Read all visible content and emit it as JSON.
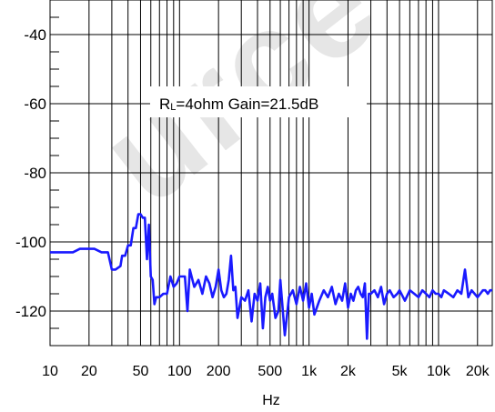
{
  "chart_data": {
    "type": "line",
    "x_scale": "log",
    "xlabel": "Hz",
    "ylabel": "",
    "xlim": [
      10,
      26000
    ],
    "ylim": [
      -130,
      -30
    ],
    "x_ticks": [
      {
        "value": 10,
        "label": "10"
      },
      {
        "value": 20,
        "label": "20"
      },
      {
        "value": 50,
        "label": "50"
      },
      {
        "value": 100,
        "label": "100"
      },
      {
        "value": 200,
        "label": "200"
      },
      {
        "value": 500,
        "label": "500"
      },
      {
        "value": 1000,
        "label": "1k"
      },
      {
        "value": 2000,
        "label": "2k"
      },
      {
        "value": 5000,
        "label": "5k"
      },
      {
        "value": 10000,
        "label": "10k"
      },
      {
        "value": 20000,
        "label": "20k"
      }
    ],
    "y_ticks": [
      -40,
      -60,
      -80,
      -100,
      -120
    ],
    "grid": true,
    "annotation": {
      "prefix": "R",
      "subscript": "L",
      "rest": "=4ohm Gain=21.5dB"
    },
    "colors": {
      "series": "#1a1aff",
      "grid": "#000000"
    },
    "series": [
      {
        "x": [
          10,
          11,
          13,
          15,
          17,
          20,
          22,
          25,
          28,
          30,
          32,
          35,
          36,
          38,
          40,
          42,
          44,
          46,
          48,
          50,
          52,
          54,
          56,
          58,
          60,
          62,
          64,
          66,
          70,
          75,
          80,
          85,
          90,
          95,
          100,
          110,
          115,
          120,
          130,
          140,
          150,
          160,
          170,
          180,
          190,
          200,
          210,
          220,
          230,
          240,
          250,
          260,
          270,
          280,
          300,
          320,
          340,
          360,
          380,
          400,
          420,
          440,
          460,
          480,
          500,
          520,
          550,
          580,
          600,
          650,
          700,
          750,
          800,
          850,
          900,
          950,
          1000,
          1050,
          1100,
          1200,
          1300,
          1400,
          1500,
          1600,
          1700,
          1800,
          1900,
          2000,
          2100,
          2200,
          2300,
          2400,
          2500,
          2600,
          2700,
          2800,
          2900,
          3000,
          3200,
          3400,
          3600,
          3800,
          4000,
          4200,
          4500,
          4800,
          5000,
          5500,
          6000,
          6500,
          7000,
          7500,
          8000,
          8500,
          9000,
          9500,
          10000,
          10500,
          11000,
          12000,
          13000,
          14000,
          15000,
          16000,
          17000,
          18000,
          19000,
          20000,
          21000,
          22000,
          23000,
          24000,
          25000,
          26000
        ],
        "y": [
          -103,
          -103,
          -103,
          -103,
          -102,
          -102,
          -102,
          -103,
          -103,
          -108,
          -108,
          -107,
          -104,
          -104,
          -101,
          -101,
          -96,
          -96,
          -92,
          -92,
          -93,
          -93,
          -105,
          -95,
          -110,
          -111,
          -118,
          -116,
          -116,
          -115,
          -115,
          -110,
          -113,
          -112,
          -110,
          -110,
          -120,
          -108,
          -113,
          -111,
          -115,
          -110,
          -112,
          -116,
          -113,
          -108,
          -114,
          -116,
          -115,
          -111,
          -104,
          -114,
          -113,
          -122,
          -116,
          -117,
          -114,
          -123,
          -115,
          -117,
          -112,
          -125,
          -116,
          -113,
          -117,
          -115,
          -122,
          -120,
          -111,
          -127,
          -116,
          -114,
          -118,
          -113,
          -117,
          -112,
          -119,
          -115,
          -121,
          -117,
          -114,
          -116,
          -113,
          -118,
          -115,
          -117,
          -112,
          -119,
          -115,
          -117,
          -114,
          -113,
          -115,
          -116,
          -112,
          -128,
          -115,
          -115,
          -114,
          -116,
          -113,
          -118,
          -115,
          -114,
          -116,
          -115,
          -114,
          -117,
          -114,
          -115,
          -116,
          -114,
          -115,
          -116,
          -114,
          -115,
          -115,
          -116,
          -114,
          -115,
          -116,
          -114,
          -115,
          -108,
          -116,
          -114,
          -115,
          -116,
          -115,
          -114,
          -114,
          -115,
          -114,
          -114
        ]
      }
    ]
  }
}
